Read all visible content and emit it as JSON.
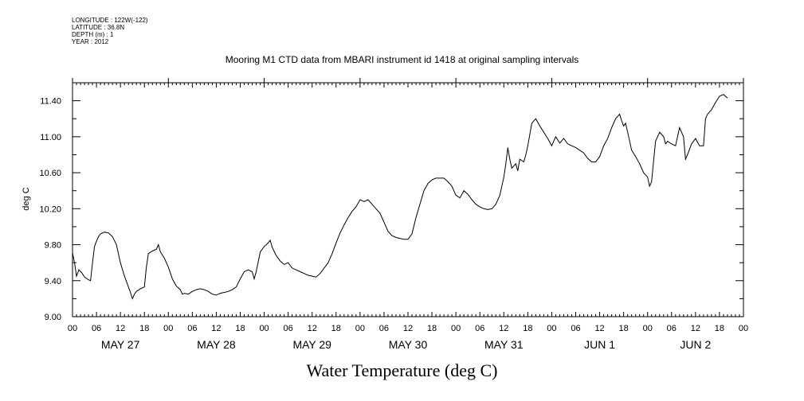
{
  "header": {
    "longitude": "LONGITUDE : 122W(-122)",
    "latitude": "LATITUDE : 36.8N",
    "depth": "DEPTH (m) : 1",
    "year": "YEAR : 2012"
  },
  "chart_data": {
    "type": "line",
    "title": "Mooring M1 CTD data from MBARI instrument id 1418 at original sampling intervals",
    "xlabel": "Water Temperature (deg C)",
    "ylabel": "deg C",
    "ylim": [
      9.0,
      11.6
    ],
    "yticks": [
      "9.00",
      "9.40",
      "9.80",
      "10.20",
      "10.60",
      "11.00",
      "11.40"
    ],
    "x_unit": "hours since MAY 27 00",
    "xlim": [
      0,
      168
    ],
    "hour_tick_labels": [
      "00",
      "06",
      "12",
      "18",
      "00",
      "06",
      "12",
      "18",
      "00",
      "06",
      "12",
      "18",
      "00",
      "06",
      "12",
      "18",
      "00",
      "06",
      "12",
      "18",
      "00",
      "06",
      "12",
      "18",
      "00",
      "06",
      "12",
      "18",
      "00"
    ],
    "day_labels": [
      "MAY 27",
      "MAY 28",
      "MAY 29",
      "MAY 30",
      "MAY 31",
      "JUN 1",
      "JUN 2"
    ],
    "grid": false,
    "series": [
      {
        "color": "#000000",
        "points": [
          [
            0,
            9.71
          ],
          [
            0.5,
            9.6
          ],
          [
            1,
            9.45
          ],
          [
            1.6,
            9.52
          ],
          [
            2.3,
            9.49
          ],
          [
            3,
            9.44
          ],
          [
            4,
            9.41
          ],
          [
            4.5,
            9.4
          ],
          [
            5,
            9.6
          ],
          [
            5.5,
            9.78
          ],
          [
            6,
            9.84
          ],
          [
            6.5,
            9.89
          ],
          [
            7,
            9.92
          ],
          [
            8,
            9.94
          ],
          [
            9,
            9.93
          ],
          [
            10,
            9.89
          ],
          [
            11,
            9.8
          ],
          [
            12,
            9.6
          ],
          [
            13,
            9.45
          ],
          [
            14,
            9.33
          ],
          [
            14.5,
            9.27
          ],
          [
            15,
            9.2
          ],
          [
            15.5,
            9.25
          ],
          [
            16,
            9.28
          ],
          [
            17,
            9.31
          ],
          [
            18,
            9.33
          ],
          [
            18.5,
            9.55
          ],
          [
            19,
            9.7
          ],
          [
            20,
            9.73
          ],
          [
            21,
            9.75
          ],
          [
            21.5,
            9.8
          ],
          [
            22,
            9.72
          ],
          [
            23,
            9.65
          ],
          [
            24,
            9.55
          ],
          [
            25,
            9.42
          ],
          [
            26,
            9.34
          ],
          [
            27,
            9.3
          ],
          [
            27.5,
            9.25
          ],
          [
            28,
            9.26
          ],
          [
            29,
            9.25
          ],
          [
            30,
            9.28
          ],
          [
            31,
            9.3
          ],
          [
            32,
            9.31
          ],
          [
            33,
            9.3
          ],
          [
            34,
            9.28
          ],
          [
            35,
            9.25
          ],
          [
            36,
            9.24
          ],
          [
            37,
            9.26
          ],
          [
            38,
            9.27
          ],
          [
            39,
            9.28
          ],
          [
            40,
            9.3
          ],
          [
            41,
            9.33
          ],
          [
            42,
            9.42
          ],
          [
            43,
            9.5
          ],
          [
            44,
            9.52
          ],
          [
            45,
            9.5
          ],
          [
            45.5,
            9.42
          ],
          [
            46,
            9.5
          ],
          [
            47,
            9.72
          ],
          [
            48,
            9.78
          ],
          [
            49,
            9.82
          ],
          [
            49.5,
            9.85
          ],
          [
            50,
            9.77
          ],
          [
            51,
            9.68
          ],
          [
            52,
            9.62
          ],
          [
            53,
            9.58
          ],
          [
            54,
            9.6
          ],
          [
            55,
            9.54
          ],
          [
            56,
            9.52
          ],
          [
            57,
            9.5
          ],
          [
            58,
            9.48
          ],
          [
            59,
            9.46
          ],
          [
            60,
            9.45
          ],
          [
            61,
            9.44
          ],
          [
            62,
            9.48
          ],
          [
            63,
            9.54
          ],
          [
            64,
            9.6
          ],
          [
            65,
            9.7
          ],
          [
            66,
            9.82
          ],
          [
            67,
            9.93
          ],
          [
            68,
            10.02
          ],
          [
            69,
            10.1
          ],
          [
            70,
            10.17
          ],
          [
            71,
            10.22
          ],
          [
            72,
            10.3
          ],
          [
            73,
            10.28
          ],
          [
            74,
            10.3
          ],
          [
            75,
            10.25
          ],
          [
            76,
            10.2
          ],
          [
            77,
            10.15
          ],
          [
            78,
            10.05
          ],
          [
            79,
            9.95
          ],
          [
            80,
            9.9
          ],
          [
            81,
            9.88
          ],
          [
            82,
            9.87
          ],
          [
            83,
            9.86
          ],
          [
            84,
            9.86
          ],
          [
            85,
            9.92
          ],
          [
            86,
            10.1
          ],
          [
            87,
            10.25
          ],
          [
            88,
            10.4
          ],
          [
            89,
            10.48
          ],
          [
            90,
            10.52
          ],
          [
            91,
            10.54
          ],
          [
            92,
            10.54
          ],
          [
            93,
            10.54
          ],
          [
            94,
            10.5
          ],
          [
            95,
            10.45
          ],
          [
            96,
            10.35
          ],
          [
            97,
            10.32
          ],
          [
            98,
            10.4
          ],
          [
            99,
            10.36
          ],
          [
            100,
            10.3
          ],
          [
            101,
            10.25
          ],
          [
            102,
            10.22
          ],
          [
            103,
            10.2
          ],
          [
            104,
            10.19
          ],
          [
            105,
            10.2
          ],
          [
            106,
            10.25
          ],
          [
            107,
            10.35
          ],
          [
            108,
            10.55
          ],
          [
            108.5,
            10.7
          ],
          [
            109,
            10.88
          ],
          [
            109.5,
            10.75
          ],
          [
            110,
            10.65
          ],
          [
            111,
            10.7
          ],
          [
            111.5,
            10.62
          ],
          [
            112,
            10.75
          ],
          [
            113,
            10.72
          ],
          [
            113.5,
            10.8
          ],
          [
            114,
            10.9
          ],
          [
            115,
            11.15
          ],
          [
            116,
            11.2
          ],
          [
            117,
            11.12
          ],
          [
            118,
            11.05
          ],
          [
            119,
            10.98
          ],
          [
            120,
            10.9
          ],
          [
            121,
            11.0
          ],
          [
            122,
            10.93
          ],
          [
            123,
            10.98
          ],
          [
            124,
            10.92
          ],
          [
            125,
            10.9
          ],
          [
            126,
            10.88
          ],
          [
            127,
            10.85
          ],
          [
            128,
            10.82
          ],
          [
            129,
            10.76
          ],
          [
            130,
            10.72
          ],
          [
            131,
            10.72
          ],
          [
            132,
            10.78
          ],
          [
            133,
            10.9
          ],
          [
            134,
            10.98
          ],
          [
            135,
            11.1
          ],
          [
            136,
            11.2
          ],
          [
            137,
            11.25
          ],
          [
            137.5,
            11.18
          ],
          [
            138,
            11.12
          ],
          [
            138.5,
            11.15
          ],
          [
            139,
            11.05
          ],
          [
            140,
            10.85
          ],
          [
            141,
            10.78
          ],
          [
            142,
            10.7
          ],
          [
            143,
            10.6
          ],
          [
            144,
            10.55
          ],
          [
            144.5,
            10.45
          ],
          [
            145,
            10.5
          ],
          [
            146,
            10.95
          ],
          [
            147,
            11.05
          ],
          [
            148,
            11.0
          ],
          [
            148.5,
            10.92
          ],
          [
            149,
            10.95
          ],
          [
            150,
            10.92
          ],
          [
            151,
            10.9
          ],
          [
            152,
            11.1
          ],
          [
            153,
            11.0
          ],
          [
            153.5,
            10.75
          ],
          [
            154,
            10.8
          ],
          [
            155,
            10.92
          ],
          [
            156,
            10.98
          ],
          [
            157,
            10.9
          ],
          [
            158,
            10.9
          ],
          [
            158.5,
            11.2
          ],
          [
            159,
            11.25
          ],
          [
            160,
            11.3
          ],
          [
            161,
            11.38
          ],
          [
            162,
            11.45
          ],
          [
            163,
            11.47
          ],
          [
            164,
            11.43
          ]
        ]
      }
    ]
  }
}
